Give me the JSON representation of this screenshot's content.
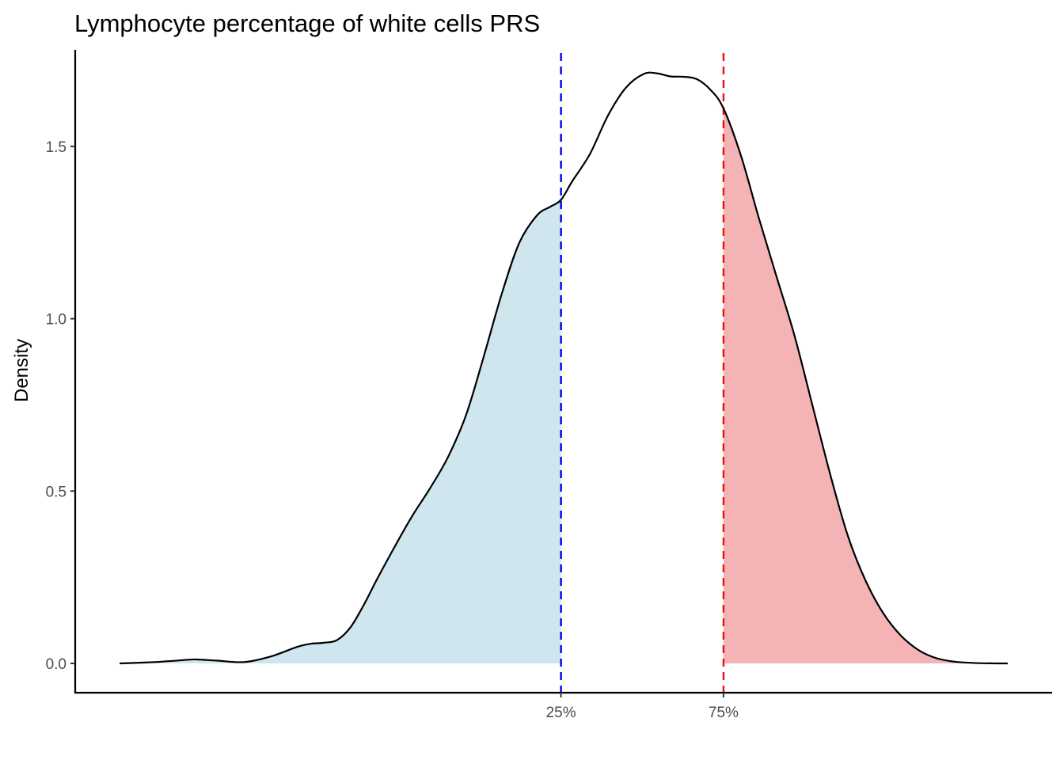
{
  "chart_data": {
    "type": "area",
    "subtype": "density",
    "title": "Lymphocyte percentage of white cells PRS",
    "xlabel": "",
    "ylabel": "Density",
    "ylim": [
      -0.085,
      1.78
    ],
    "xlim": [
      -5,
      105
    ],
    "y_ticks": [
      {
        "value": 0.0,
        "label": "0.0"
      },
      {
        "value": 0.5,
        "label": "0.5"
      },
      {
        "value": 1.0,
        "label": "1.0"
      },
      {
        "value": 1.5,
        "label": "1.5"
      }
    ],
    "x_ticks": [
      {
        "value": 49.7,
        "label": "25%"
      },
      {
        "value": 68.0,
        "label": "75%"
      }
    ],
    "grid": false,
    "legend": "none",
    "quantile_lines": [
      {
        "name": "25%",
        "x": 49.7,
        "color": "#0000ee",
        "style": "dashed"
      },
      {
        "name": "75%",
        "x": 68.0,
        "color": "#ee1111",
        "style": "dashed"
      }
    ],
    "fills": [
      {
        "name": "lower-quartile",
        "from": 0,
        "to": 49.7,
        "color": "#d0e6ef"
      },
      {
        "name": "upper-quartile",
        "from": 68.0,
        "to": 100,
        "color": "#f4b4b6"
      }
    ],
    "line_color": "#000000",
    "x": [
      0,
      4,
      8,
      9,
      11,
      14,
      17,
      20,
      21.5,
      23,
      24.5,
      26,
      27.5,
      29,
      31,
      33,
      35,
      37,
      39,
      41,
      43,
      45,
      47,
      48.5,
      49.7,
      51,
      53,
      55,
      57,
      59,
      60.5,
      62,
      63.5,
      65,
      66.5,
      68,
      70,
      72,
      74,
      76,
      78,
      80,
      82,
      84,
      86,
      88,
      90,
      92,
      94,
      96,
      98,
      100
    ],
    "y": [
      0.0,
      0.004,
      0.011,
      0.011,
      0.008,
      0.004,
      0.02,
      0.048,
      0.057,
      0.06,
      0.068,
      0.105,
      0.17,
      0.245,
      0.34,
      0.43,
      0.51,
      0.6,
      0.72,
      0.89,
      1.07,
      1.22,
      1.3,
      1.325,
      1.345,
      1.4,
      1.48,
      1.59,
      1.67,
      1.71,
      1.712,
      1.703,
      1.702,
      1.695,
      1.665,
      1.61,
      1.47,
      1.29,
      1.12,
      0.95,
      0.75,
      0.55,
      0.37,
      0.24,
      0.145,
      0.08,
      0.038,
      0.015,
      0.005,
      0.0015,
      0.0003,
      0.0
    ]
  }
}
